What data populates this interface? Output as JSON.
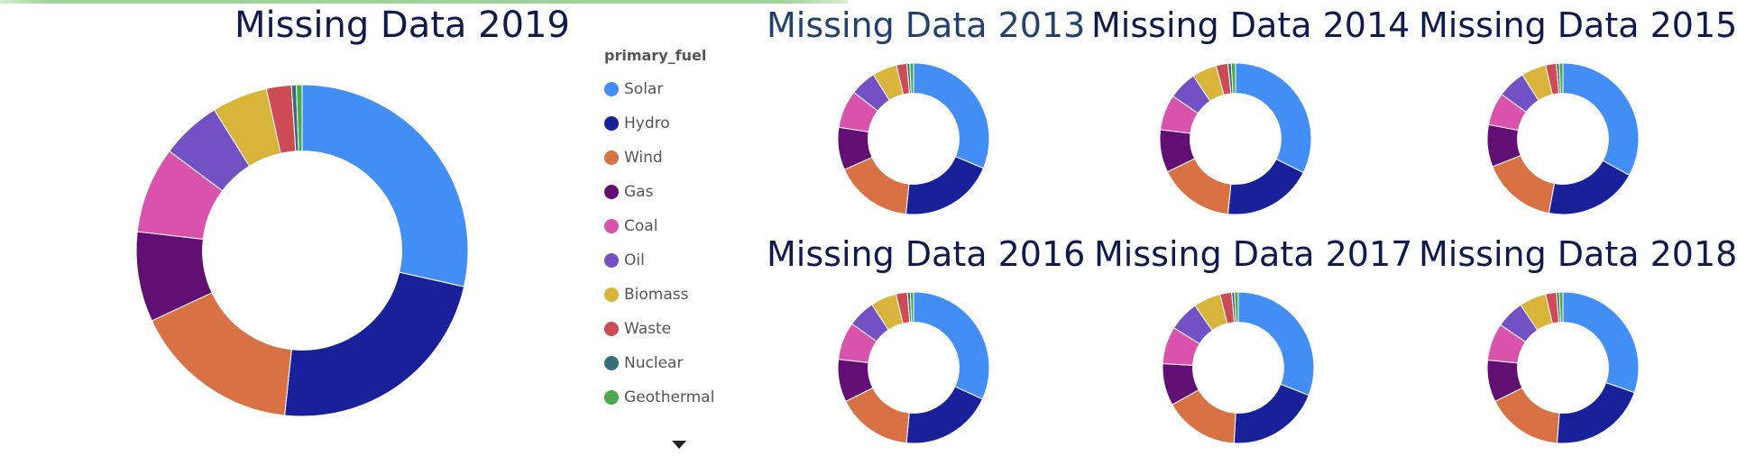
{
  "legend": {
    "title": "primary_fuel",
    "items": [
      {
        "label": "Solar",
        "color": "#438ef5"
      },
      {
        "label": "Hydro",
        "color": "#18219a"
      },
      {
        "label": "Wind",
        "color": "#d87245"
      },
      {
        "label": "Gas",
        "color": "#620f73"
      },
      {
        "label": "Coal",
        "color": "#d953ad"
      },
      {
        "label": "Oil",
        "color": "#7351c4"
      },
      {
        "label": "Biomass",
        "color": "#d8b53a"
      },
      {
        "label": "Waste",
        "color": "#cd4b55"
      },
      {
        "label": "Nuclear",
        "color": "#346f7b"
      },
      {
        "label": "Geothermal",
        "color": "#4aa84d"
      }
    ]
  },
  "chart_data": [
    {
      "type": "pie",
      "title": "Missing Data 2019",
      "hole": 0.6,
      "categories": [
        "Solar",
        "Hydro",
        "Wind",
        "Gas",
        "Coal",
        "Oil",
        "Biomass",
        "Waste",
        "Nuclear",
        "Geothermal"
      ],
      "values": [
        30.5,
        24.8,
        17.5,
        9.4,
        9.0,
        6.3,
        5.8,
        2.6,
        0.5,
        0.6
      ]
    },
    {
      "type": "pie",
      "title": "Missing Data 2013",
      "hole": 0.6,
      "categories": [
        "Solar",
        "Hydro",
        "Wind",
        "Gas",
        "Coal",
        "Oil",
        "Biomass",
        "Waste",
        "Nuclear",
        "Geothermal"
      ],
      "values": [
        31.0,
        20.0,
        16.5,
        9.0,
        8.0,
        5.5,
        5.2,
        2.2,
        0.6,
        0.8
      ]
    },
    {
      "type": "pie",
      "title": "Missing Data 2014",
      "hole": 0.6,
      "categories": [
        "Solar",
        "Hydro",
        "Wind",
        "Gas",
        "Coal",
        "Oil",
        "Biomass",
        "Waste",
        "Nuclear",
        "Geothermal"
      ],
      "values": [
        32.0,
        19.0,
        16.0,
        9.0,
        7.5,
        6.0,
        5.2,
        2.5,
        0.7,
        0.9
      ]
    },
    {
      "type": "pie",
      "title": "Missing Data 2015",
      "hole": 0.6,
      "categories": [
        "Solar",
        "Hydro",
        "Wind",
        "Gas",
        "Coal",
        "Oil",
        "Biomass",
        "Waste",
        "Nuclear",
        "Geothermal"
      ],
      "values": [
        33.0,
        20.0,
        16.0,
        9.0,
        7.0,
        6.0,
        5.3,
        2.3,
        0.6,
        0.8
      ]
    },
    {
      "type": "pie",
      "title": "Missing Data 2016",
      "hole": 0.6,
      "categories": [
        "Solar",
        "Hydro",
        "Wind",
        "Gas",
        "Coal",
        "Oil",
        "Biomass",
        "Waste",
        "Nuclear",
        "Geothermal"
      ],
      "values": [
        31.5,
        19.5,
        16.0,
        9.0,
        8.0,
        5.8,
        5.5,
        2.4,
        0.6,
        0.7
      ]
    },
    {
      "type": "pie",
      "title": "Missing Data 2017",
      "hole": 0.6,
      "categories": [
        "Solar",
        "Hydro",
        "Wind",
        "Gas",
        "Coal",
        "Oil",
        "Biomass",
        "Waste",
        "Nuclear",
        "Geothermal"
      ],
      "values": [
        31.0,
        20.0,
        16.0,
        9.0,
        8.0,
        6.5,
        5.8,
        2.5,
        0.6,
        0.8
      ]
    },
    {
      "type": "pie",
      "title": "Missing Data 2018",
      "hole": 0.6,
      "categories": [
        "Solar",
        "Hydro",
        "Wind",
        "Gas",
        "Coal",
        "Oil",
        "Biomass",
        "Waste",
        "Nuclear",
        "Geothermal"
      ],
      "values": [
        30.5,
        21.0,
        16.5,
        9.0,
        8.0,
        6.0,
        5.8,
        2.3,
        0.6,
        0.8
      ]
    }
  ]
}
